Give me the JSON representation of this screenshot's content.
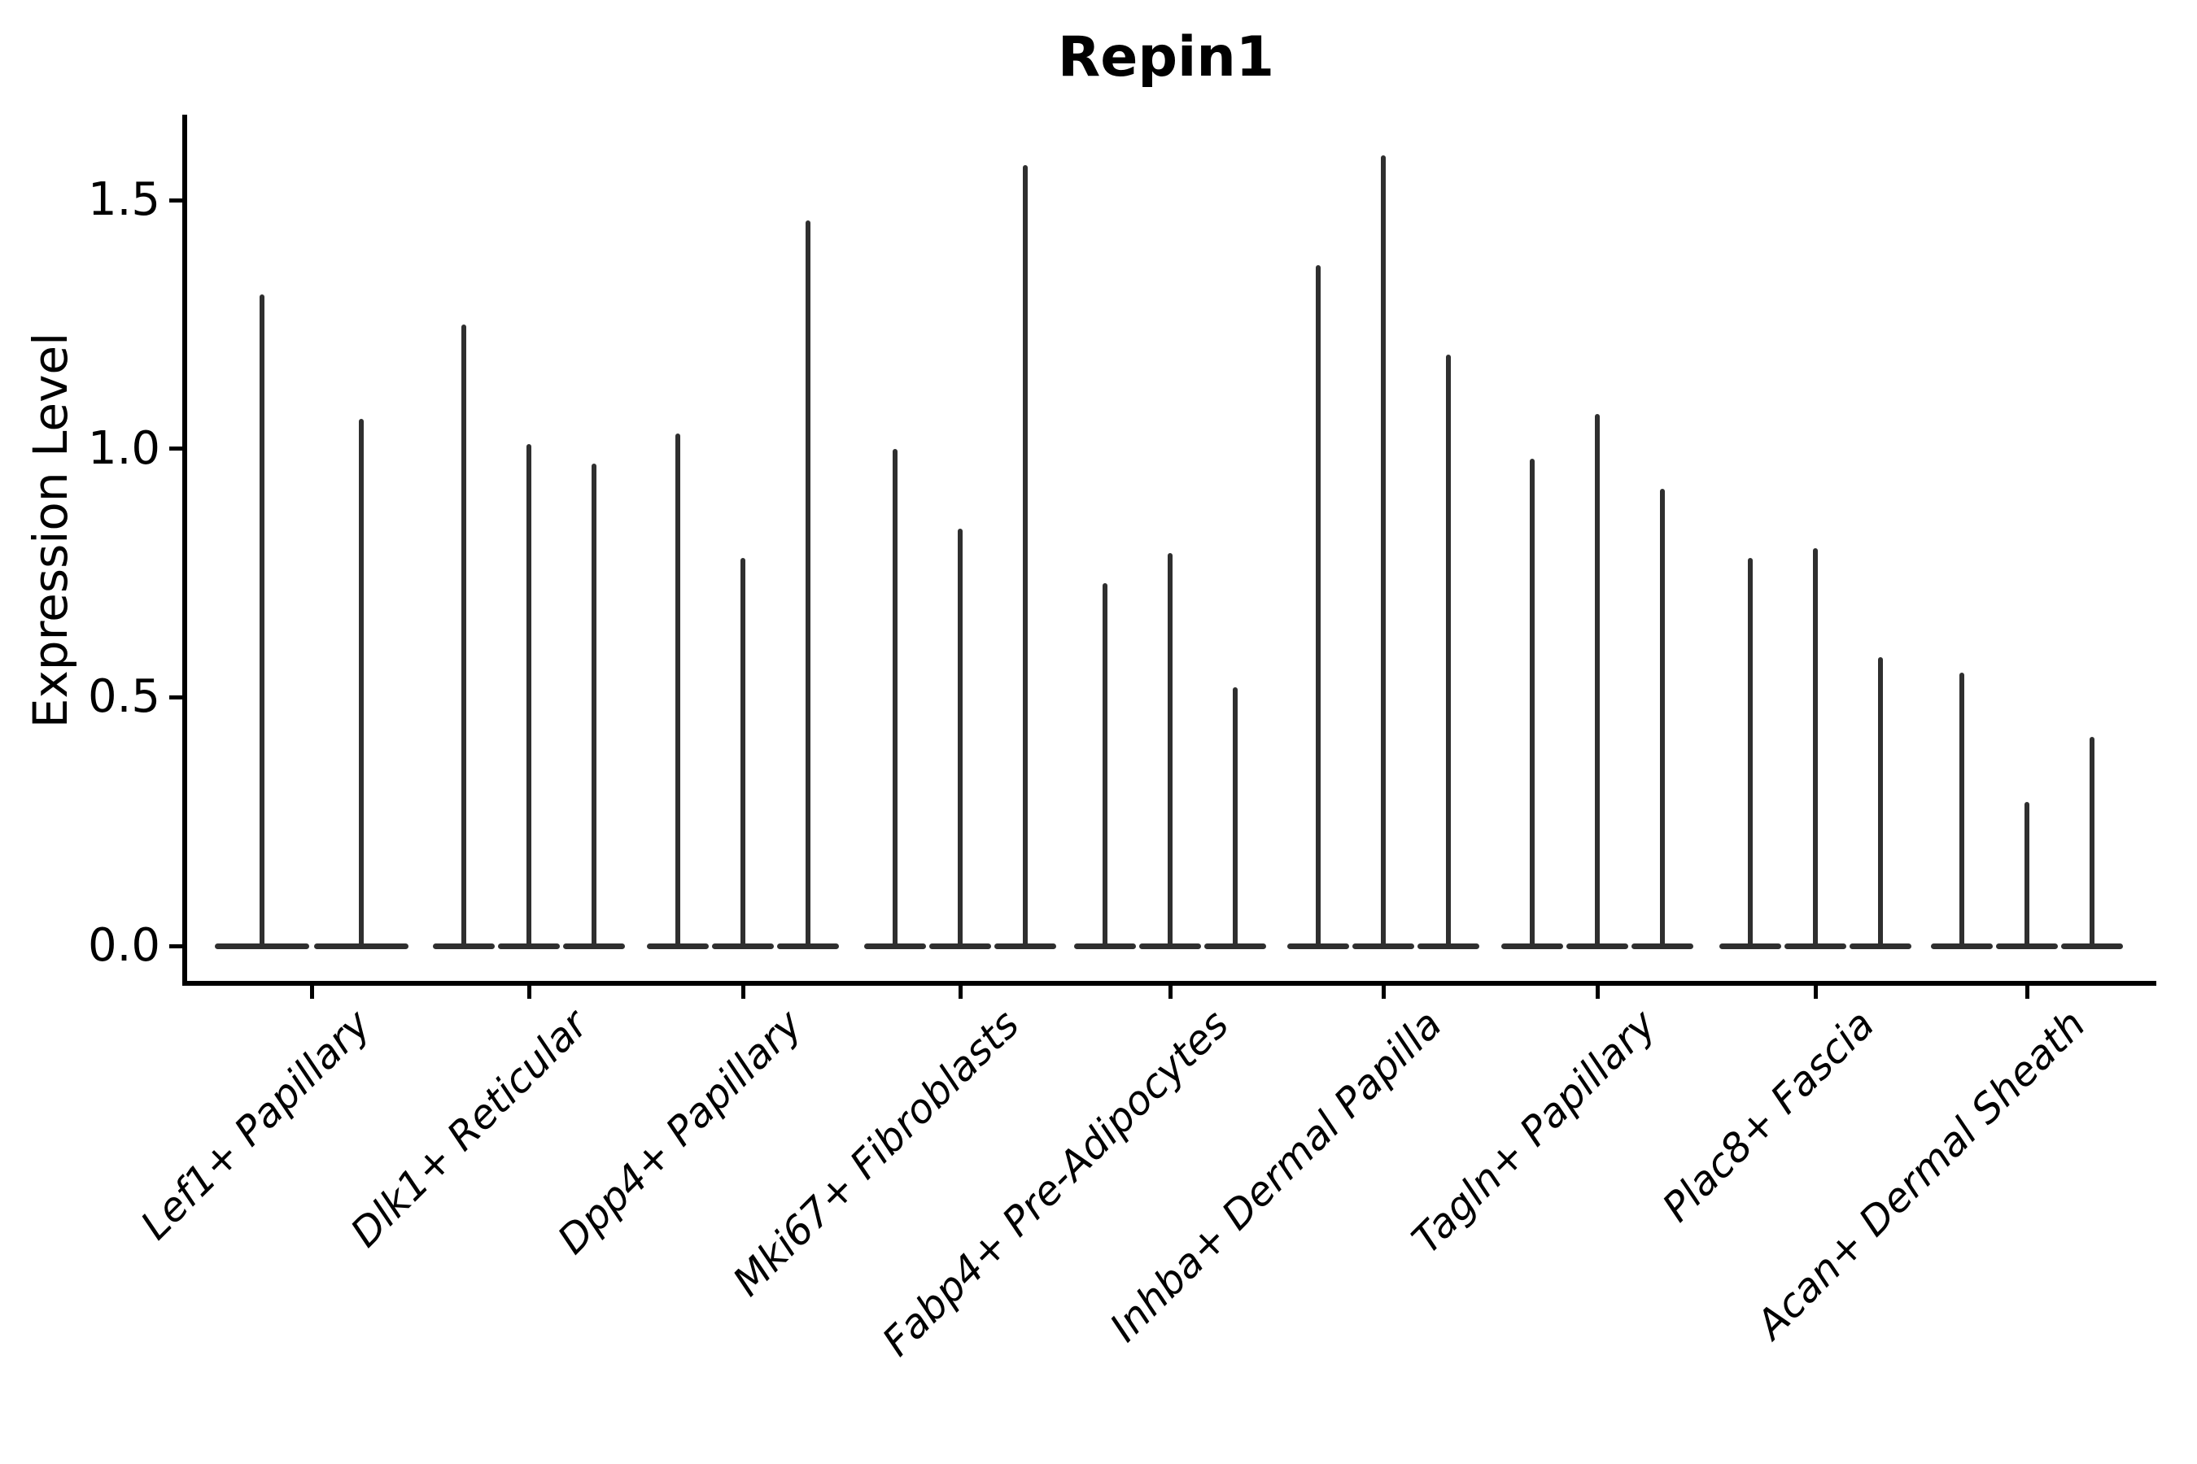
{
  "figure": {
    "title": "Repin1",
    "y_axis": {
      "label": "Expression Level",
      "tick_labels": [
        "0.0",
        "0.5",
        "1.0",
        "1.5"
      ]
    },
    "x_axis": {
      "tick_labels": [
        "Lef1+ Papillary",
        "Dlk1+ Reticular",
        "Dpp4+ Papillary",
        "Mki67+ Fibroblasts",
        "Fabp4+ Pre-Adipocytes",
        "Inhba+ Dermal Papilla",
        "Tagln+ Papillary",
        "Plac8+ Fascia",
        "Acan+ Dermal Sheath"
      ]
    }
  },
  "style": {
    "violin_color": "#2f2f2f",
    "axis_color": "#000000",
    "text_color": "#000000",
    "background": "#ffffff"
  },
  "chart_data": {
    "type": "violin",
    "title": "Repin1",
    "xlabel": "",
    "ylabel": "Expression Level",
    "categories": [
      "Lef1+ Papillary",
      "Dlk1+ Reticular",
      "Dpp4+ Papillary",
      "Mki67+ Fibroblasts",
      "Fabp4+ Pre-Adipocytes",
      "Inhba+ Dermal Papilla",
      "Tagln+ Papillary",
      "Plac8+ Fascia",
      "Acan+ Dermal Sheath"
    ],
    "series": [
      {
        "category": "Lef1+ Papillary",
        "violin_peaks": [
          1.31,
          1.06
        ]
      },
      {
        "category": "Dlk1+ Reticular",
        "violin_peaks": [
          1.25,
          1.01,
          0.97
        ]
      },
      {
        "category": "Dpp4+ Papillary",
        "violin_peaks": [
          1.03,
          0.78,
          1.46
        ]
      },
      {
        "category": "Mki67+ Fibroblasts",
        "violin_peaks": [
          1.0,
          0.84,
          1.57
        ]
      },
      {
        "category": "Fabp4+ Pre-Adipocytes",
        "violin_peaks": [
          0.73,
          0.79,
          0.52
        ]
      },
      {
        "category": "Inhba+ Dermal Papilla",
        "violin_peaks": [
          1.37,
          1.59,
          1.19
        ]
      },
      {
        "category": "Tagln+ Papillary",
        "violin_peaks": [
          0.98,
          1.07,
          0.92
        ]
      },
      {
        "category": "Plac8+ Fascia",
        "violin_peaks": [
          0.78,
          0.8,
          0.58
        ]
      },
      {
        "category": "Acan+ Dermal Sheath",
        "violin_peaks": [
          0.55,
          0.29,
          0.42
        ]
      }
    ],
    "yticks": [
      0.0,
      0.5,
      1.0,
      1.5
    ],
    "ylim": [
      -0.07,
      1.67
    ],
    "grid": false,
    "legend": null,
    "notes": "Each category shows thin violins: a flat density bulge at 0 expression with a narrow spike rising to the listed maximum expression value."
  }
}
